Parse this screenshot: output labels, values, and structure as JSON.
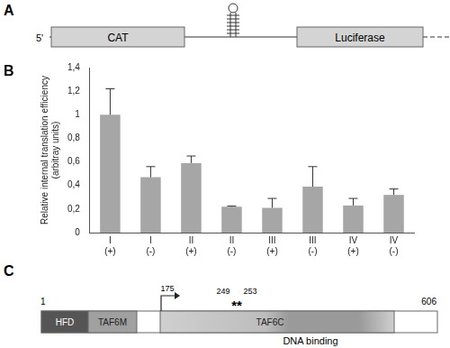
{
  "chart_data": {
    "type": "bar",
    "annotations": [
      "B"
    ],
    "categories": [
      [
        "I",
        "(+)"
      ],
      [
        "I",
        "(-)"
      ],
      [
        "II",
        "(+)"
      ],
      [
        "II",
        "(-)"
      ],
      [
        "III",
        "(+)"
      ],
      [
        "III",
        "(-)"
      ],
      [
        "IV",
        "(+)"
      ],
      [
        "IV",
        "(-)"
      ]
    ],
    "values": [
      1.0,
      0.47,
      0.59,
      0.22,
      0.21,
      0.39,
      0.23,
      0.32
    ],
    "errors": [
      0.22,
      0.09,
      0.06,
      0.005,
      0.08,
      0.17,
      0.06,
      0.05
    ],
    "color": "#a6a6a6",
    "ylabel": [
      "Relative internal translation efficiency",
      "(arbitray units)"
    ],
    "ylim": [
      0,
      1.4
    ],
    "yticks": [
      0,
      {
        "value": 0.2,
        "label": "0,2"
      },
      {
        "value": 0.4,
        "label": "0,4"
      },
      {
        "value": 0.6,
        "label": "0,6"
      },
      {
        "value": 0.8,
        "label": "0,8"
      },
      1,
      {
        "value": 1.2,
        "label": "1,2"
      },
      {
        "value": 1.4,
        "label": "1,4"
      }
    ],
    "grid": false
  },
  "panel_a": {
    "label": "A",
    "five_prime": "5'",
    "box1": "CAT",
    "box2": "Luciferase"
  },
  "panel_c": {
    "label": "C",
    "start": "1",
    "end": "606",
    "hfd": "HFD",
    "taf6m": "TAF6M",
    "taf6c": "TAF6C",
    "arrow_label": "175",
    "site1": "249",
    "site2": "253",
    "marks": "**",
    "region": "DNA binding"
  }
}
